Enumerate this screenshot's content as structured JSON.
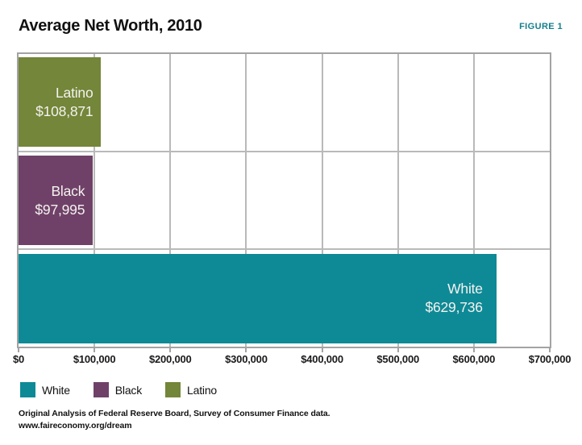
{
  "header": {
    "title": "Average Net Worth, 2010",
    "figure_label": "FIGURE 1"
  },
  "chart_data": {
    "type": "bar",
    "orientation": "horizontal",
    "title": "Average Net Worth, 2010",
    "categories": [
      "Latino",
      "Black",
      "White"
    ],
    "values": [
      108871,
      97995,
      629736
    ],
    "bars": [
      {
        "label": "Latino",
        "value": 108871,
        "value_label": "$108,871",
        "color": "#738639"
      },
      {
        "label": "Black",
        "value": 97995,
        "value_label": "$97,995",
        "color": "#6F4168"
      },
      {
        "label": "White",
        "value": 629736,
        "value_label": "$629,736",
        "color": "#0E8A96"
      }
    ],
    "xlim": [
      0,
      700000
    ],
    "x_ticks": [
      "$0",
      "$100,000",
      "$200,000",
      "$300,000",
      "$400,000",
      "$500,000",
      "$600,000",
      "$700,000"
    ],
    "grid": true,
    "legend_position": "bottom-left"
  },
  "legend": {
    "items": [
      {
        "label": "White",
        "color": "#0E8A96"
      },
      {
        "label": "Black",
        "color": "#6F4168"
      },
      {
        "label": "Latino",
        "color": "#738639"
      }
    ]
  },
  "footer": {
    "line1": "Original Analysis of Federal Reserve Board, Survey of Consumer Finance data.",
    "line2": "www.faireconomy.org/dream"
  },
  "colors": {
    "figure_label": "#157F8D",
    "grid": "#B9B9B9",
    "plot_border": "#A3A3A3",
    "bar_text": "#F4F2EF",
    "text": "#111111"
  }
}
